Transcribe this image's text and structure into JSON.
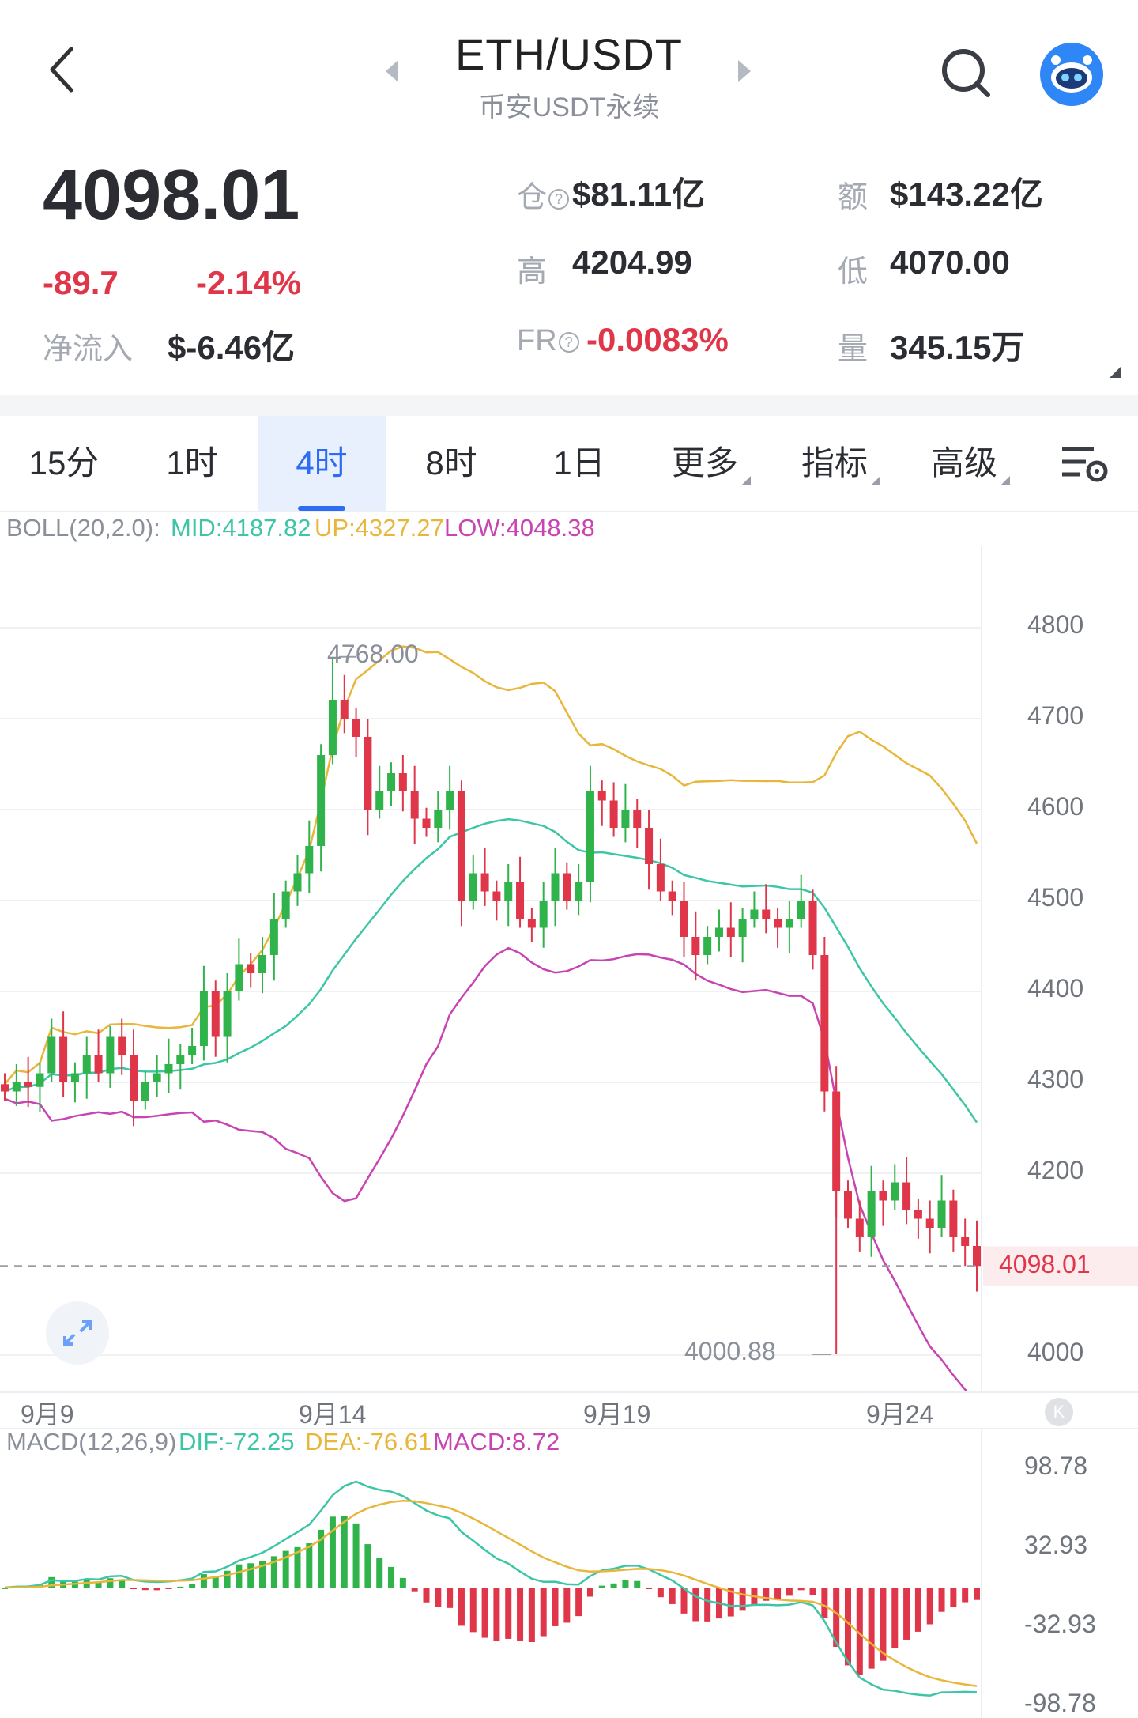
{
  "header": {
    "pair": "ETH/USDT",
    "exchange": "币安USDT永续"
  },
  "stats": {
    "last_price": "4098.01",
    "change_abs": "-89.7",
    "change_pct": "-2.14%",
    "net_inflow_label": "净流入",
    "net_inflow_value": "$-6.46亿",
    "oi_label": "仓",
    "oi_value": "$81.11亿",
    "amount_label": "额",
    "amount_value": "$143.22亿",
    "high_label": "高",
    "high_value": "4204.99",
    "low_label": "低",
    "low_value": "4070.00",
    "fr_label": "FR",
    "fr_value": "-0.0083%",
    "volume_label": "量",
    "volume_value": "345.15万"
  },
  "tabs": [
    {
      "label": "15分"
    },
    {
      "label": "1时"
    },
    {
      "label": "4时"
    },
    {
      "label": "8时"
    },
    {
      "label": "1日"
    },
    {
      "label": "更多"
    },
    {
      "label": "指标"
    },
    {
      "label": "高级"
    }
  ],
  "active_tab": "4时",
  "boll": {
    "name": "BOLL(20,2.0):",
    "mid": "MID:4187.82",
    "up": "UP:4327.27",
    "low": "LOW:4048.38"
  },
  "macd": {
    "name": "MACD(12,26,9)",
    "dif": "DIF:-72.25",
    "dea": "DEA:-76.61",
    "macd": "MACD:8.72"
  },
  "colors": {
    "up": "#2fb34a",
    "down": "#e0364a",
    "mid_line": "#3cc6a6",
    "up_line": "#e8b63a",
    "low_line": "#c744b2",
    "accent": "#2f6cf6"
  },
  "chart_data": [
    {
      "type": "candlestick",
      "title": "",
      "y_ticks": [
        "4800",
        "4700",
        "4600",
        "4500",
        "4400",
        "4300",
        "4200",
        "4000"
      ],
      "x_ticks": [
        "9月9",
        "9月14",
        "9月19",
        "9月24"
      ],
      "annotations": {
        "max_label": "4768.00",
        "min_label": "4000.88",
        "current_price": "4098.01"
      },
      "ylim": [
        4000,
        4800
      ],
      "close_series": [
        4290,
        4300,
        4295,
        4310,
        4350,
        4300,
        4310,
        4330,
        4310,
        4350,
        4330,
        4280,
        4300,
        4310,
        4320,
        4330,
        4340,
        4400,
        4350,
        4400,
        4430,
        4420,
        4440,
        4480,
        4510,
        4530,
        4560,
        4660,
        4720,
        4700,
        4680,
        4600,
        4620,
        4640,
        4620,
        4590,
        4580,
        4600,
        4620,
        4500,
        4530,
        4510,
        4500,
        4520,
        4480,
        4470,
        4500,
        4530,
        4500,
        4520,
        4620,
        4610,
        4580,
        4600,
        4580,
        4540,
        4510,
        4500,
        4460,
        4440,
        4460,
        4470,
        4460,
        4480,
        4490,
        4480,
        4470,
        4480,
        4500,
        4440,
        4290,
        4180,
        4150,
        4130,
        4180,
        4170,
        4190,
        4160,
        4150,
        4140,
        4170,
        4130,
        4120,
        4098.01
      ]
    },
    {
      "type": "bar",
      "title": "",
      "y_ticks": [
        "98.78",
        "32.93",
        "-32.93",
        "-98.78"
      ],
      "ylim": [
        -98.78,
        98.78
      ]
    }
  ]
}
